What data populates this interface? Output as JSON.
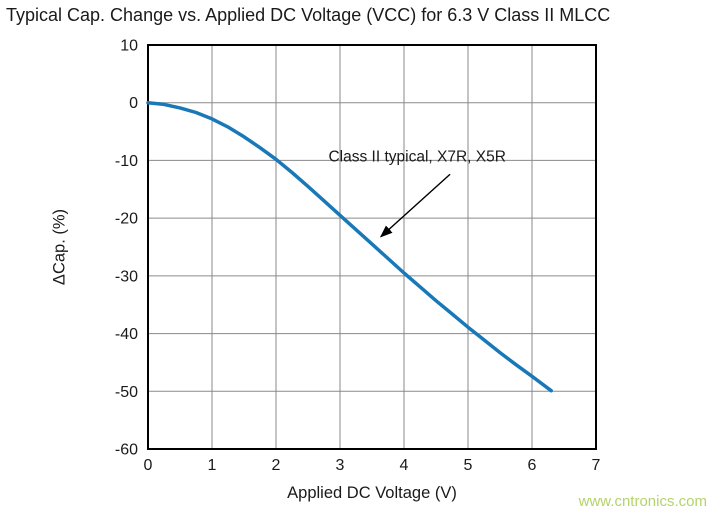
{
  "watermark": "www.cntronics.com",
  "colors": {
    "curve": "#1878b8",
    "grid": "#8a8a8a",
    "axis": "#000000",
    "text": "#1a1a1a",
    "watermark": "#b4d36c",
    "background": "#ffffff"
  },
  "chart_data": {
    "type": "line",
    "title": "Typical Cap. Change vs. Applied DC Voltage (VCC) for 6.3 V Class II MLCC",
    "xlabel": "Applied DC Voltage (V)",
    "ylabel": "ΔCap. (%)",
    "xlim": [
      0,
      7
    ],
    "ylim": [
      -60,
      10
    ],
    "xticks": [
      0,
      1,
      2,
      3,
      4,
      5,
      6,
      7
    ],
    "yticks": [
      10,
      0,
      -10,
      -20,
      -30,
      -40,
      -50,
      -60
    ],
    "grid": true,
    "legend": "none",
    "series": [
      {
        "name": "Class II typical, X7R, X5R",
        "color": "#1878b8",
        "x": [
          0,
          0.25,
          0.5,
          0.75,
          1,
          1.25,
          1.5,
          1.75,
          2,
          2.25,
          2.5,
          2.75,
          3,
          3.25,
          3.5,
          3.75,
          4,
          4.25,
          4.5,
          4.75,
          5,
          5.25,
          5.5,
          5.75,
          6,
          6.3
        ],
        "y": [
          0,
          -0.3,
          -0.9,
          -1.7,
          -2.8,
          -4.2,
          -5.9,
          -7.8,
          -9.8,
          -12.1,
          -14.5,
          -17.0,
          -19.5,
          -22.0,
          -24.5,
          -27.0,
          -29.5,
          -31.9,
          -34.3,
          -36.6,
          -38.9,
          -41.1,
          -43.3,
          -45.4,
          -47.4,
          -49.9
        ]
      }
    ],
    "annotation": {
      "text": "Class II typical, X7R, X5R",
      "text_x": 2.82,
      "text_y": -10.2,
      "arrow": {
        "from_x": 4.72,
        "from_y": -12.4,
        "to_x": 3.64,
        "to_y": -23.2
      }
    }
  }
}
